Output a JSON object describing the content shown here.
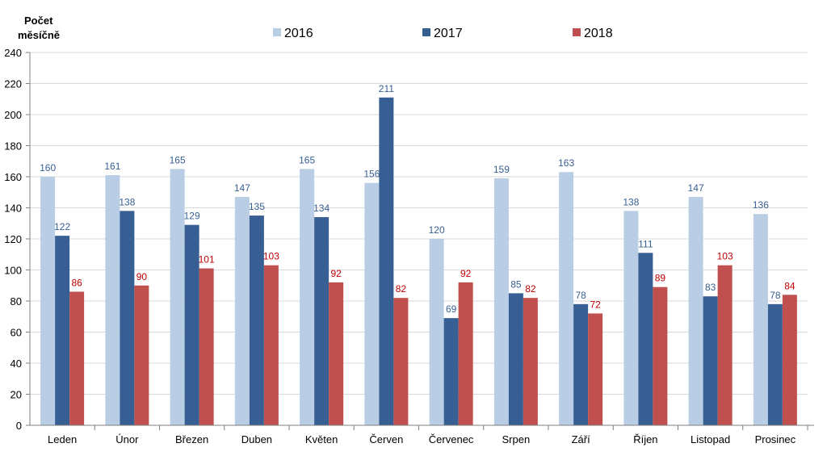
{
  "chart_data": {
    "type": "bar",
    "title": "",
    "ylabel_lines": [
      "Počet",
      "měsíčně"
    ],
    "xlabel": "",
    "ylim": [
      0,
      240
    ],
    "yticks": [
      0,
      20,
      40,
      60,
      80,
      100,
      120,
      140,
      160,
      180,
      200,
      220,
      240
    ],
    "grid": true,
    "legend_position": "top",
    "categories": [
      "Leden",
      "Únor",
      "Březen",
      "Duben",
      "Květen",
      "Červen",
      "Červenec",
      "Srpen",
      "Září",
      "Říjen",
      "Listopad",
      "Prosinec"
    ],
    "series": [
      {
        "name": "2016",
        "color": "#b9cde5",
        "label_color": "#376092",
        "values": [
          160,
          161,
          165,
          147,
          165,
          156,
          120,
          159,
          163,
          138,
          147,
          136
        ]
      },
      {
        "name": "2017",
        "color": "#375f93",
        "label_color": "#376092",
        "values": [
          122,
          138,
          129,
          135,
          134,
          211,
          69,
          85,
          78,
          111,
          83,
          78
        ]
      },
      {
        "name": "2018",
        "color": "#c0504d",
        "label_color": "#c00000",
        "values": [
          86,
          90,
          101,
          103,
          92,
          82,
          92,
          82,
          72,
          89,
          103,
          84
        ]
      }
    ]
  }
}
